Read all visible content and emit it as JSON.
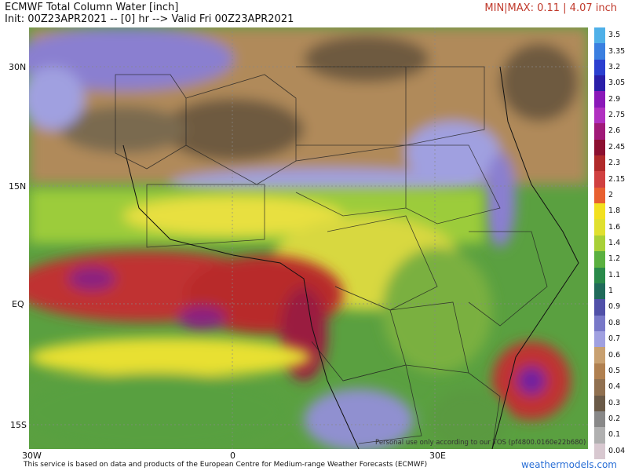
{
  "header": {
    "title": "ECMWF Total Column Water [inch]",
    "subtitle": "Init: 00Z23APR2021 -- [0] hr --> Valid Fri 00Z23APR2021",
    "minmax": "MIN|MAX: 0.11 | 4.07 inch"
  },
  "map": {
    "lat_labels": [
      "30N",
      "15N",
      "EQ",
      "15S"
    ],
    "lon_labels": [
      "30W",
      "0",
      "30E"
    ],
    "tos_note": "Personal use only according to our TOS (pf4800.0160e22b680)"
  },
  "colorbar": {
    "labels": [
      "3.5",
      "3.35",
      "3.2",
      "3.05",
      "2.9",
      "2.75",
      "2.6",
      "2.45",
      "2.3",
      "2.15",
      "2",
      "1.8",
      "1.6",
      "1.4",
      "1.2",
      "1.1",
      "1",
      "0.9",
      "0.8",
      "0.7",
      "0.6",
      "0.5",
      "0.4",
      "0.3",
      "0.2",
      "0.1",
      "0.04"
    ],
    "colors": [
      "#4fb0e8",
      "#3a7fe0",
      "#2b3fcf",
      "#2a1ea8",
      "#8a18b8",
      "#b030c0",
      "#a01a78",
      "#8c1030",
      "#b02a2a",
      "#d04040",
      "#e86030",
      "#f2e020",
      "#e0e030",
      "#a8d038",
      "#5ab040",
      "#2a8a4a",
      "#206a5a",
      "#5050a8",
      "#7878c8",
      "#a0a0e0",
      "#c8a070",
      "#b08050",
      "#907050",
      "#6a5a48",
      "#888888",
      "#b0b0b0",
      "#d8c8d0"
    ]
  },
  "footer": {
    "credit": "This service is based on data and products of the European Centre for Medium-range Weather Forecasts (ECMWF)",
    "brand": "weathermodels.com"
  }
}
